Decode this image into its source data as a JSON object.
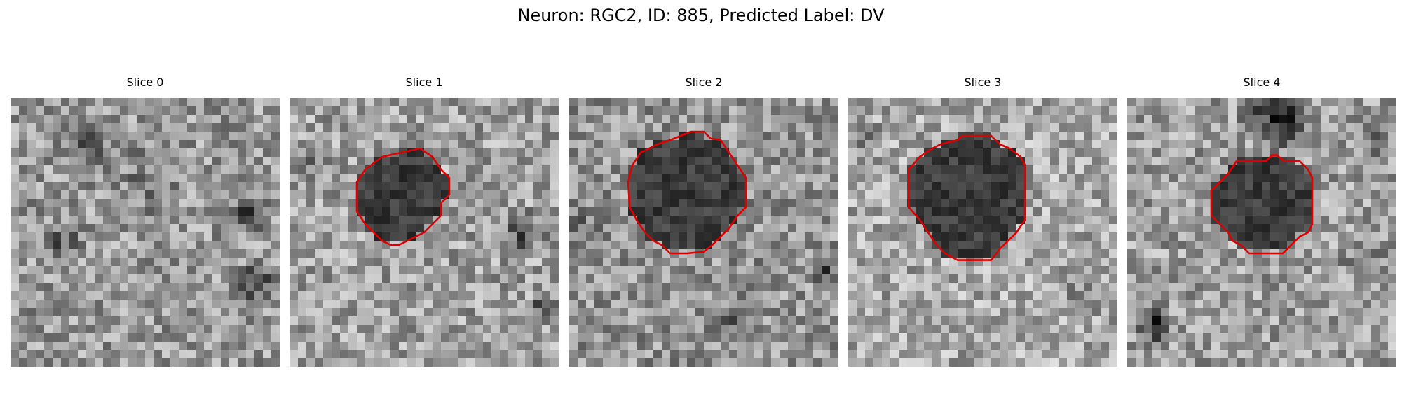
{
  "figure": {
    "title": "Neuron: RGC2, ID: 885, Predicted Label: DV"
  },
  "colors": {
    "outline": "#e00000"
  },
  "slices": [
    {
      "title": "Slice 0",
      "seed": 11,
      "mean": 0.6,
      "has_outline": false
    },
    {
      "title": "Slice 1",
      "seed": 23,
      "mean": 0.63,
      "has_outline": true
    },
    {
      "title": "Slice 2",
      "seed": 37,
      "mean": 0.58,
      "has_outline": true
    },
    {
      "title": "Slice 3",
      "seed": 53,
      "mean": 0.66,
      "has_outline": true
    },
    {
      "title": "Slice 4",
      "seed": 71,
      "mean": 0.62,
      "has_outline": true
    }
  ]
}
